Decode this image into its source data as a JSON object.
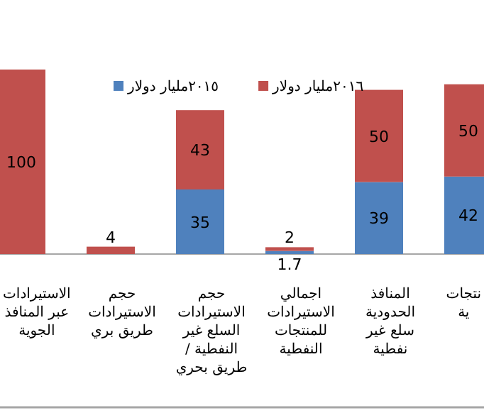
{
  "chart_data": {
    "type": "bar",
    "stacked": true,
    "data_labels": true,
    "legend": "top",
    "grid": false,
    "categories": [
      "الاستيرادات\nعبر المنافذ\nالجوية",
      "حجم\nالاستيرادات\nطريق بري",
      "حجم\nالاستيرادات\nالسلع غير\nالنفطية /\nطريق بحري",
      "اجمالي\nالاستيرادات\nللمنتجات\nالنفطية",
      "المنافذ\nالحدودية\nسلع غير\nنفطية",
      "نتجات\nية"
    ],
    "series": [
      {
        "name": "٢٠١٥مليار دولار",
        "color": "#4f81bd",
        "values": [
          null,
          null,
          35,
          1.7,
          39,
          42
        ]
      },
      {
        "name": "٢٠١٦مليار دولار",
        "color": "#c0504d",
        "values": [
          100,
          4,
          43,
          2,
          50,
          50
        ]
      }
    ]
  }
}
